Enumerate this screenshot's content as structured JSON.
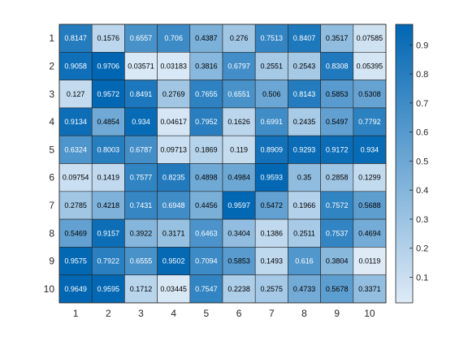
{
  "chart_data": {
    "type": "heatmap",
    "title": "",
    "xlabel": "",
    "ylabel": "",
    "x_categories": [
      "1",
      "2",
      "3",
      "4",
      "5",
      "6",
      "7",
      "8",
      "9",
      "10"
    ],
    "y_categories": [
      "1",
      "2",
      "3",
      "4",
      "5",
      "6",
      "7",
      "8",
      "9",
      "10"
    ],
    "values": [
      [
        0.8147,
        0.1576,
        0.6557,
        0.706,
        0.4387,
        0.276,
        0.7513,
        0.8407,
        0.3517,
        0.07585
      ],
      [
        0.9058,
        0.9706,
        0.03571,
        0.03183,
        0.3816,
        0.6797,
        0.2551,
        0.2543,
        0.8308,
        0.05395
      ],
      [
        0.127,
        0.9572,
        0.8491,
        0.2769,
        0.7655,
        0.6551,
        0.506,
        0.8143,
        0.5853,
        0.5308
      ],
      [
        0.9134,
        0.4854,
        0.934,
        0.04617,
        0.7952,
        0.1626,
        0.6991,
        0.2435,
        0.5497,
        0.7792
      ],
      [
        0.6324,
        0.8003,
        0.6787,
        0.09713,
        0.1869,
        0.119,
        0.8909,
        0.9293,
        0.9172,
        0.934
      ],
      [
        0.09754,
        0.1419,
        0.7577,
        0.8235,
        0.4898,
        0.4984,
        0.9593,
        0.35,
        0.2858,
        0.1299
      ],
      [
        0.2785,
        0.4218,
        0.7431,
        0.6948,
        0.4456,
        0.9597,
        0.5472,
        0.1966,
        0.7572,
        0.5688
      ],
      [
        0.5469,
        0.9157,
        0.3922,
        0.3171,
        0.6463,
        0.3404,
        0.1386,
        0.2511,
        0.7537,
        0.4694
      ],
      [
        0.9575,
        0.7922,
        0.6555,
        0.9502,
        0.7094,
        0.5853,
        0.1493,
        0.616,
        0.3804,
        0.0119
      ],
      [
        0.9649,
        0.9595,
        0.1712,
        0.03445,
        0.7547,
        0.2238,
        0.2575,
        0.4733,
        0.5678,
        0.3371
      ]
    ],
    "value_labels": [
      [
        "0.8147",
        "0.1576",
        "0.6557",
        "0.706",
        "0.4387",
        "0.276",
        "0.7513",
        "0.8407",
        "0.3517",
        "0.07585"
      ],
      [
        "0.9058",
        "0.9706",
        "0.03571",
        "0.03183",
        "0.3816",
        "0.6797",
        "0.2551",
        "0.2543",
        "0.8308",
        "0.05395"
      ],
      [
        "0.127",
        "0.9572",
        "0.8491",
        "0.2769",
        "0.7655",
        "0.6551",
        "0.506",
        "0.8143",
        "0.5853",
        "0.5308"
      ],
      [
        "0.9134",
        "0.4854",
        "0.934",
        "0.04617",
        "0.7952",
        "0.1626",
        "0.6991",
        "0.2435",
        "0.5497",
        "0.7792"
      ],
      [
        "0.6324",
        "0.8003",
        "0.6787",
        "0.09713",
        "0.1869",
        "0.119",
        "0.8909",
        "0.9293",
        "0.9172",
        "0.934"
      ],
      [
        "0.09754",
        "0.1419",
        "0.7577",
        "0.8235",
        "0.4898",
        "0.4984",
        "0.9593",
        "0.35",
        "0.2858",
        "0.1299"
      ],
      [
        "0.2785",
        "0.4218",
        "0.7431",
        "0.6948",
        "0.4456",
        "0.9597",
        "0.5472",
        "0.1966",
        "0.7572",
        "0.5688"
      ],
      [
        "0.5469",
        "0.9157",
        "0.3922",
        "0.3171",
        "0.6463",
        "0.3404",
        "0.1386",
        "0.2511",
        "0.7537",
        "0.4694"
      ],
      [
        "0.9575",
        "0.7922",
        "0.6555",
        "0.9502",
        "0.7094",
        "0.5853",
        "0.1493",
        "0.616",
        "0.3804",
        "0.0119"
      ],
      [
        "0.9649",
        "0.9595",
        "0.1712",
        "0.03445",
        "0.7547",
        "0.2238",
        "0.2575",
        "0.4733",
        "0.5678",
        "0.3371"
      ]
    ],
    "colorbar": {
      "range": [
        0.0119,
        0.9706
      ],
      "ticks": [
        0.1,
        0.2,
        0.3,
        0.4,
        0.5,
        0.6,
        0.7,
        0.8,
        0.9
      ],
      "tick_labels": [
        "0.1",
        "0.2",
        "0.3",
        "0.4",
        "0.5",
        "0.6",
        "0.7",
        "0.8",
        "0.9"
      ],
      "location": "right"
    },
    "colormap": {
      "low": "#deebf7",
      "high": "#0066b3"
    },
    "text_color_light": "#ffffff",
    "text_color_dark": "#000000",
    "grid": true
  }
}
